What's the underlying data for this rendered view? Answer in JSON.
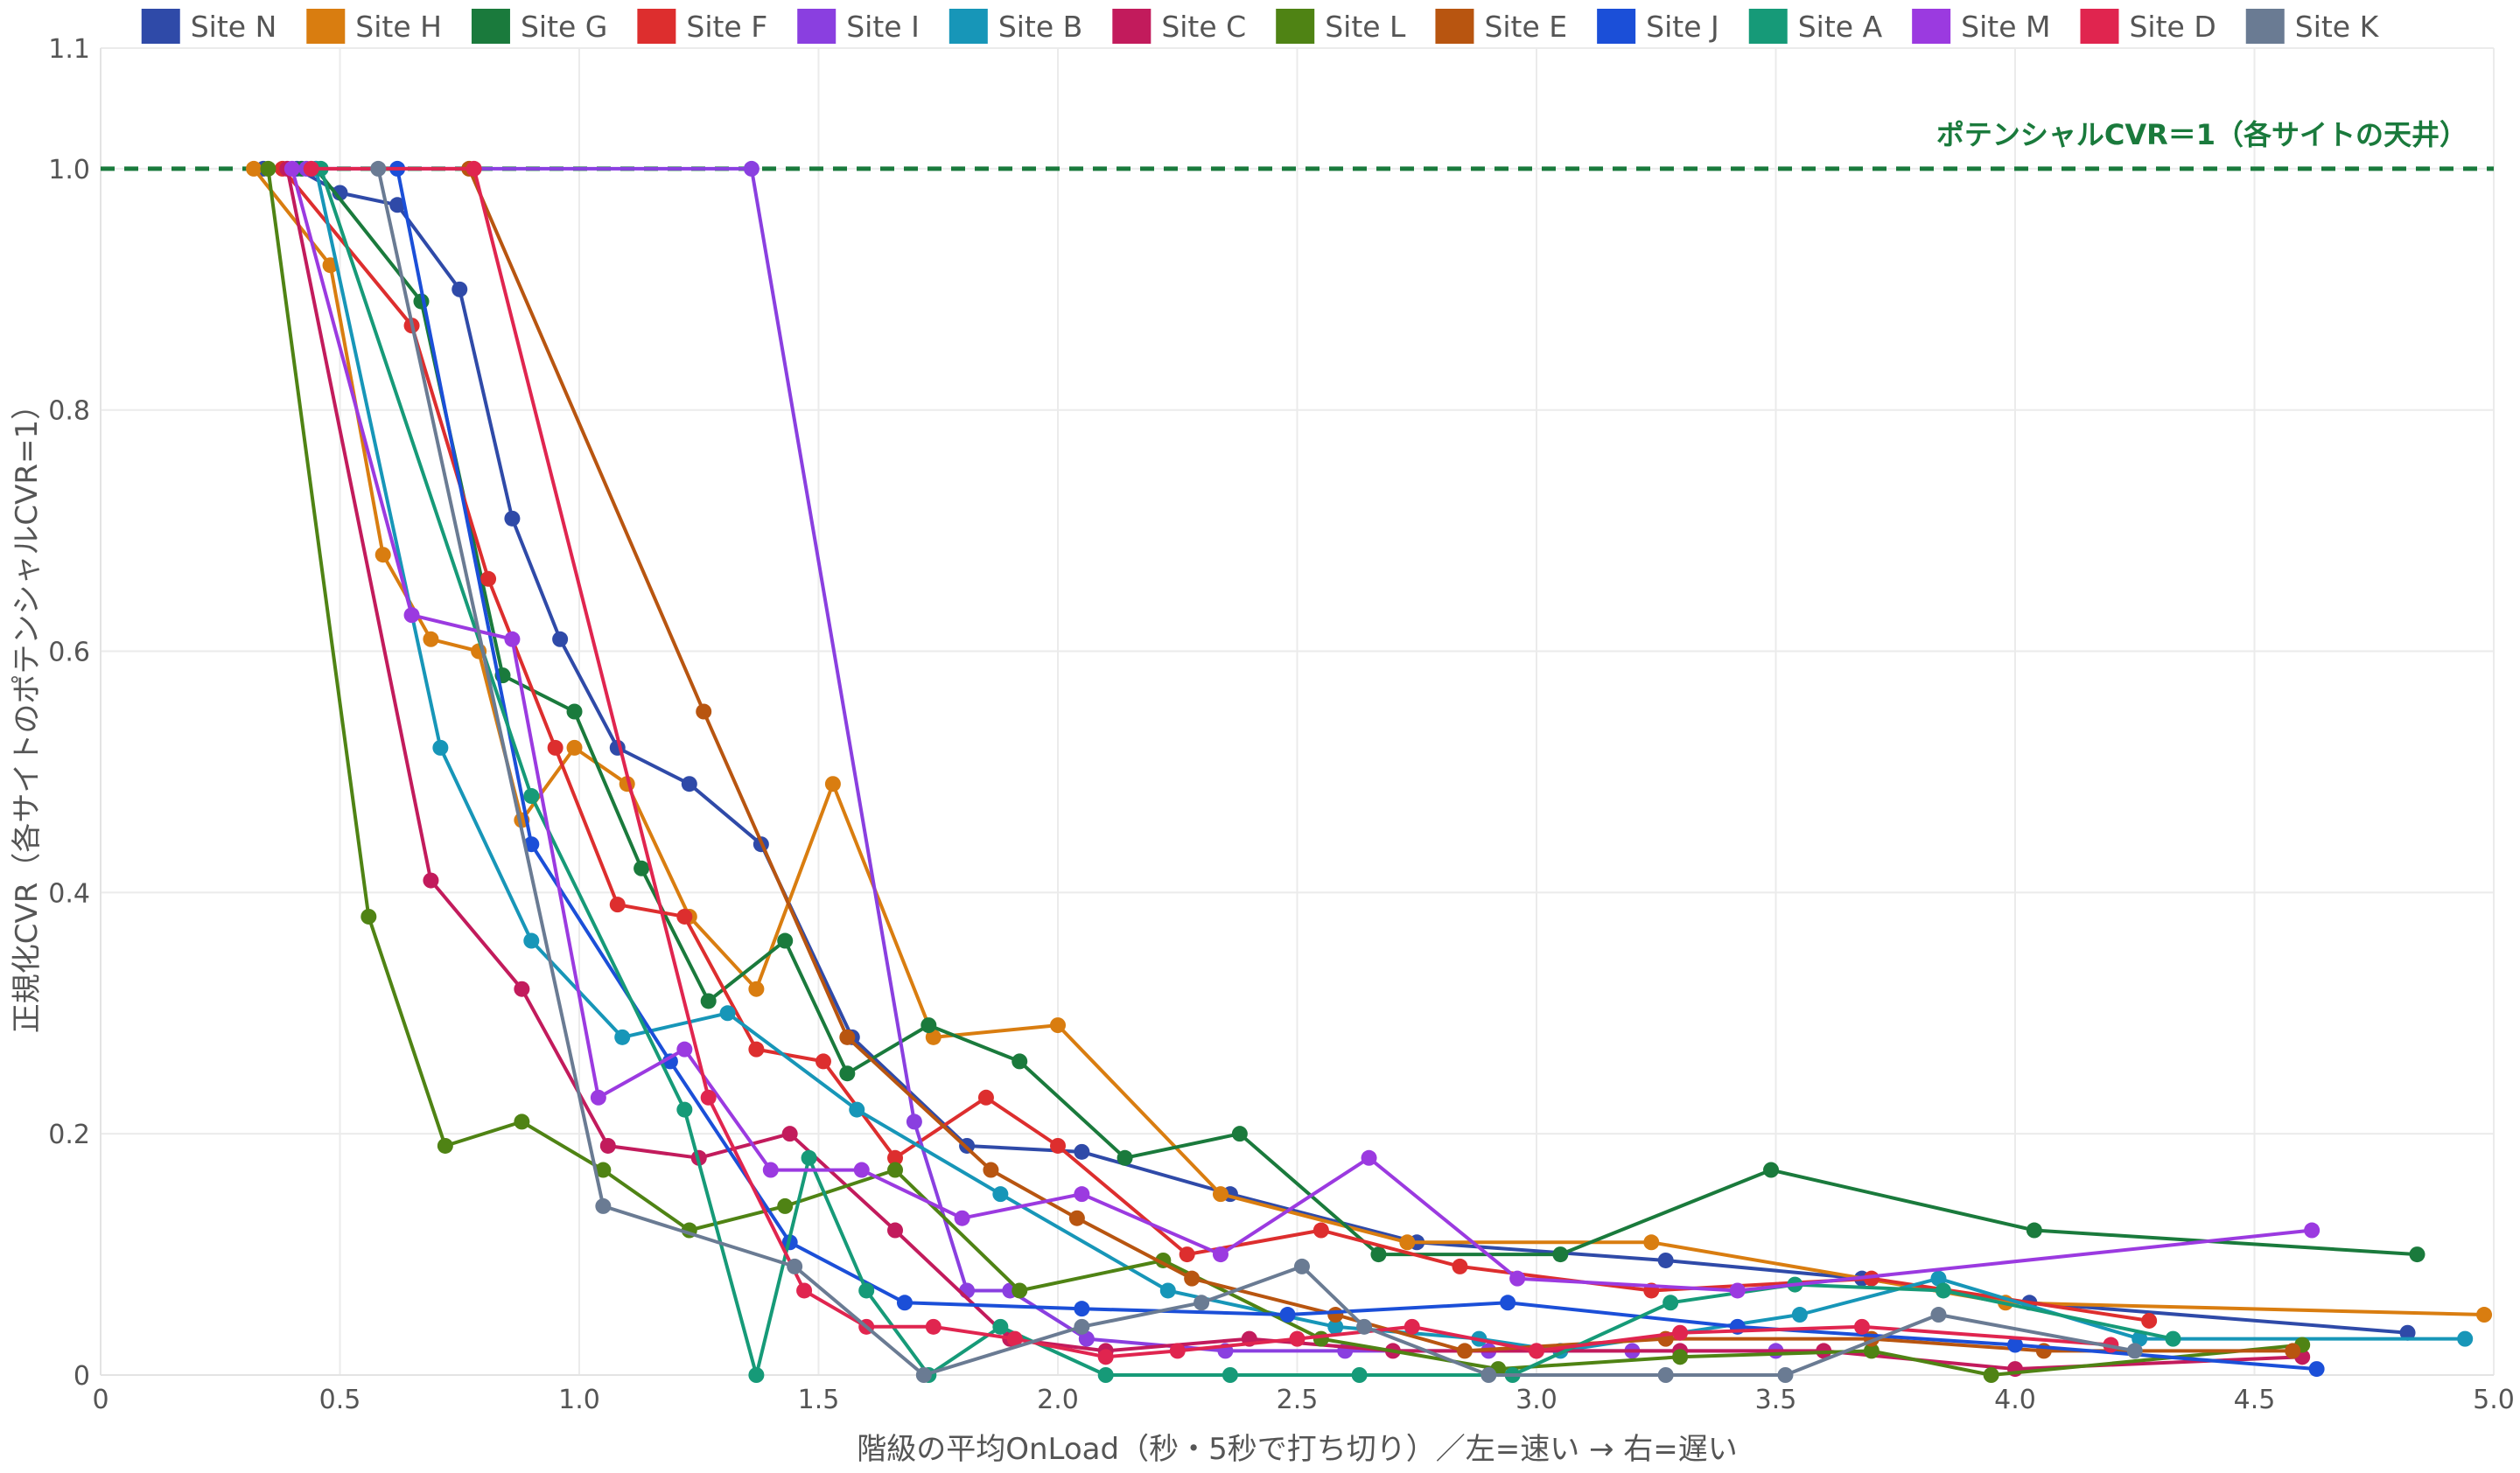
{
  "chart_data": {
    "type": "line",
    "title": "",
    "xlabel": "階級の平均OnLoad（秒・5秒で打ち切り）／左=速い → 右=遅い",
    "ylabel": "正規化CVR（各サイトのポテンシャルCVR=1）",
    "xlim": [
      0,
      5
    ],
    "ylim": [
      0,
      1.1
    ],
    "x_ticks": [
      0,
      0.5,
      1,
      1.5,
      2,
      2.5,
      3,
      3.5,
      4,
      4.5,
      5
    ],
    "x_tick_labels": [
      "0",
      "0.5",
      "1.0",
      "1.5",
      "2.0",
      "2.5",
      "3.0",
      "3.5",
      "4.0",
      "4.5",
      "5.0"
    ],
    "y_ticks": [
      0,
      0.2,
      0.4,
      0.6,
      0.8,
      1.0,
      1.1
    ],
    "y_tick_labels": [
      "0",
      "0.2",
      "0.4",
      "0.6",
      "0.8",
      "1.0",
      "1.1"
    ],
    "grid": true,
    "legend_position": "top",
    "reference_line": {
      "y": 1.0,
      "style": "dashed",
      "color": "#1a7a3c",
      "label": "ポテンシャルCVR＝1（各サイトの天井）"
    },
    "series": [
      {
        "name": "Site N",
        "color": "#2f4aa8",
        "points": [
          [
            0.34,
            1.0
          ],
          [
            0.41,
            1.0
          ],
          [
            0.5,
            0.98
          ],
          [
            0.62,
            0.97
          ],
          [
            0.75,
            0.9
          ],
          [
            0.86,
            0.71
          ],
          [
            0.96,
            0.61
          ],
          [
            1.08,
            0.52
          ],
          [
            1.23,
            0.49
          ],
          [
            1.38,
            0.44
          ],
          [
            1.57,
            0.28
          ],
          [
            1.81,
            0.19
          ],
          [
            2.05,
            0.185
          ],
          [
            2.36,
            0.15
          ],
          [
            2.75,
            0.11
          ],
          [
            3.27,
            0.095
          ],
          [
            3.68,
            0.08
          ],
          [
            4.03,
            0.06
          ],
          [
            4.82,
            0.035
          ]
        ]
      },
      {
        "name": "Site H",
        "color": "#d97d10",
        "points": [
          [
            0.32,
            1.0
          ],
          [
            0.48,
            0.92
          ],
          [
            0.59,
            0.68
          ],
          [
            0.69,
            0.61
          ],
          [
            0.79,
            0.6
          ],
          [
            0.88,
            0.46
          ],
          [
            0.99,
            0.52
          ],
          [
            1.1,
            0.49
          ],
          [
            1.23,
            0.38
          ],
          [
            1.37,
            0.32
          ],
          [
            1.53,
            0.49
          ],
          [
            1.74,
            0.28
          ],
          [
            2.0,
            0.29
          ],
          [
            2.34,
            0.15
          ],
          [
            2.73,
            0.11
          ],
          [
            3.24,
            0.11
          ],
          [
            3.98,
            0.06
          ],
          [
            4.98,
            0.05
          ]
        ]
      },
      {
        "name": "Site G",
        "color": "#1a7a3c",
        "points": [
          [
            0.42,
            1.0
          ],
          [
            0.45,
            1.0
          ],
          [
            0.67,
            0.89
          ],
          [
            0.84,
            0.58
          ],
          [
            0.99,
            0.55
          ],
          [
            1.13,
            0.42
          ],
          [
            1.27,
            0.31
          ],
          [
            1.43,
            0.36
          ],
          [
            1.56,
            0.25
          ],
          [
            1.73,
            0.29
          ],
          [
            1.92,
            0.26
          ],
          [
            2.14,
            0.18
          ],
          [
            2.38,
            0.2
          ],
          [
            2.67,
            0.1
          ],
          [
            3.05,
            0.1
          ],
          [
            3.49,
            0.17
          ],
          [
            4.04,
            0.12
          ],
          [
            4.84,
            0.1
          ]
        ]
      },
      {
        "name": "Site F",
        "color": "#dd2e2e",
        "points": [
          [
            0.38,
            1.0
          ],
          [
            0.65,
            0.87
          ],
          [
            0.81,
            0.66
          ],
          [
            0.95,
            0.52
          ],
          [
            1.08,
            0.39
          ],
          [
            1.22,
            0.38
          ],
          [
            1.37,
            0.27
          ],
          [
            1.51,
            0.26
          ],
          [
            1.66,
            0.18
          ],
          [
            1.85,
            0.23
          ],
          [
            2.0,
            0.19
          ],
          [
            2.27,
            0.1
          ],
          [
            2.55,
            0.12
          ],
          [
            2.84,
            0.09
          ],
          [
            3.24,
            0.07
          ],
          [
            3.7,
            0.08
          ],
          [
            4.28,
            0.045
          ]
        ]
      },
      {
        "name": "Site I",
        "color": "#8a3fe0",
        "points": [
          [
            0.43,
            1.0
          ],
          [
            1.36,
            1.0
          ],
          [
            1.7,
            0.21
          ],
          [
            1.81,
            0.07
          ],
          [
            1.9,
            0.07
          ],
          [
            2.06,
            0.03
          ],
          [
            2.35,
            0.02
          ],
          [
            2.6,
            0.02
          ],
          [
            2.9,
            0.02
          ],
          [
            3.2,
            0.02
          ],
          [
            3.5,
            0.02
          ]
        ]
      },
      {
        "name": "Site B",
        "color": "#1796b8",
        "points": [
          [
            0.45,
            1.0
          ],
          [
            0.71,
            0.52
          ],
          [
            0.9,
            0.36
          ],
          [
            1.09,
            0.28
          ],
          [
            1.31,
            0.3
          ],
          [
            1.58,
            0.22
          ],
          [
            1.88,
            0.15
          ],
          [
            2.23,
            0.07
          ],
          [
            2.58,
            0.04
          ],
          [
            2.88,
            0.03
          ],
          [
            3.05,
            0.02
          ],
          [
            3.55,
            0.05
          ],
          [
            3.84,
            0.08
          ],
          [
            4.26,
            0.03
          ],
          [
            4.94,
            0.03
          ]
        ]
      },
      {
        "name": "Site C",
        "color": "#c21b5c",
        "points": [
          [
            0.39,
            1.0
          ],
          [
            0.69,
            0.41
          ],
          [
            0.88,
            0.32
          ],
          [
            1.06,
            0.19
          ],
          [
            1.25,
            0.18
          ],
          [
            1.44,
            0.2
          ],
          [
            1.66,
            0.12
          ],
          [
            1.9,
            0.03
          ],
          [
            2.1,
            0.02
          ],
          [
            2.4,
            0.03
          ],
          [
            2.7,
            0.02
          ],
          [
            3.0,
            0.02
          ],
          [
            3.3,
            0.02
          ],
          [
            3.6,
            0.02
          ],
          [
            4.0,
            0.005
          ],
          [
            4.6,
            0.015
          ]
        ]
      },
      {
        "name": "Site L",
        "color": "#4f8314",
        "points": [
          [
            0.35,
            1.0
          ],
          [
            0.56,
            0.38
          ],
          [
            0.72,
            0.19
          ],
          [
            0.88,
            0.21
          ],
          [
            1.05,
            0.17
          ],
          [
            1.23,
            0.12
          ],
          [
            1.43,
            0.14
          ],
          [
            1.66,
            0.17
          ],
          [
            1.92,
            0.07
          ],
          [
            2.22,
            0.095
          ],
          [
            2.55,
            0.03
          ],
          [
            2.92,
            0.005
          ],
          [
            3.3,
            0.015
          ],
          [
            3.7,
            0.02
          ],
          [
            3.95,
            0.0
          ],
          [
            4.6,
            0.025
          ]
        ]
      },
      {
        "name": "Site E",
        "color": "#b85510",
        "points": [
          [
            0.77,
            1.0
          ],
          [
            1.26,
            0.55
          ],
          [
            1.56,
            0.28
          ],
          [
            1.86,
            0.17
          ],
          [
            2.04,
            0.13
          ],
          [
            2.28,
            0.08
          ],
          [
            2.58,
            0.05
          ],
          [
            2.85,
            0.02
          ],
          [
            3.27,
            0.03
          ],
          [
            3.7,
            0.03
          ],
          [
            4.06,
            0.02
          ],
          [
            4.58,
            0.02
          ]
        ]
      },
      {
        "name": "Site J",
        "color": "#1b4fd8",
        "points": [
          [
            0.62,
            1.0
          ],
          [
            0.9,
            0.44
          ],
          [
            1.19,
            0.26
          ],
          [
            1.44,
            0.11
          ],
          [
            1.68,
            0.06
          ],
          [
            2.05,
            0.055
          ],
          [
            2.48,
            0.05
          ],
          [
            2.94,
            0.06
          ],
          [
            3.42,
            0.04
          ],
          [
            4.0,
            0.025
          ],
          [
            4.63,
            0.005
          ]
        ]
      },
      {
        "name": "Site A",
        "color": "#169a78",
        "points": [
          [
            0.46,
            1.0
          ],
          [
            0.9,
            0.48
          ],
          [
            1.22,
            0.22
          ],
          [
            1.37,
            0.0
          ],
          [
            1.48,
            0.18
          ],
          [
            1.6,
            0.07
          ],
          [
            1.73,
            0.0
          ],
          [
            1.88,
            0.04
          ],
          [
            2.1,
            0.0
          ],
          [
            2.36,
            0.0
          ],
          [
            2.63,
            0.0
          ],
          [
            2.95,
            0.0
          ],
          [
            3.28,
            0.06
          ],
          [
            3.54,
            0.075
          ],
          [
            3.85,
            0.07
          ],
          [
            4.33,
            0.03
          ]
        ]
      },
      {
        "name": "Site M",
        "color": "#9b3ae0",
        "points": [
          [
            0.4,
            1.0
          ],
          [
            0.65,
            0.63
          ],
          [
            0.86,
            0.61
          ],
          [
            1.04,
            0.23
          ],
          [
            1.22,
            0.27
          ],
          [
            1.4,
            0.17
          ],
          [
            1.59,
            0.17
          ],
          [
            1.8,
            0.13
          ],
          [
            2.05,
            0.15
          ],
          [
            2.34,
            0.1
          ],
          [
            2.65,
            0.18
          ],
          [
            2.96,
            0.08
          ],
          [
            3.42,
            0.07
          ],
          [
            4.62,
            0.12
          ]
        ]
      },
      {
        "name": "Site D",
        "color": "#e0254f",
        "points": [
          [
            0.44,
            1.0
          ],
          [
            0.78,
            1.0
          ],
          [
            1.27,
            0.23
          ],
          [
            1.47,
            0.07
          ],
          [
            1.6,
            0.04
          ],
          [
            1.74,
            0.04
          ],
          [
            1.91,
            0.03
          ],
          [
            2.1,
            0.015
          ],
          [
            2.25,
            0.02
          ],
          [
            2.5,
            0.03
          ],
          [
            2.74,
            0.04
          ],
          [
            3.0,
            0.02
          ],
          [
            3.3,
            0.035
          ],
          [
            3.68,
            0.04
          ],
          [
            4.2,
            0.025
          ]
        ]
      },
      {
        "name": "Site K",
        "color": "#6a7b93",
        "points": [
          [
            0.58,
            1.0
          ],
          [
            1.05,
            0.14
          ],
          [
            1.45,
            0.09
          ],
          [
            1.72,
            0.0
          ],
          [
            2.05,
            0.04
          ],
          [
            2.3,
            0.06
          ],
          [
            2.51,
            0.09
          ],
          [
            2.64,
            0.04
          ],
          [
            2.9,
            0.0
          ],
          [
            3.27,
            0.0
          ],
          [
            3.52,
            0.0
          ],
          [
            3.84,
            0.05
          ],
          [
            4.25,
            0.02
          ]
        ]
      }
    ]
  }
}
